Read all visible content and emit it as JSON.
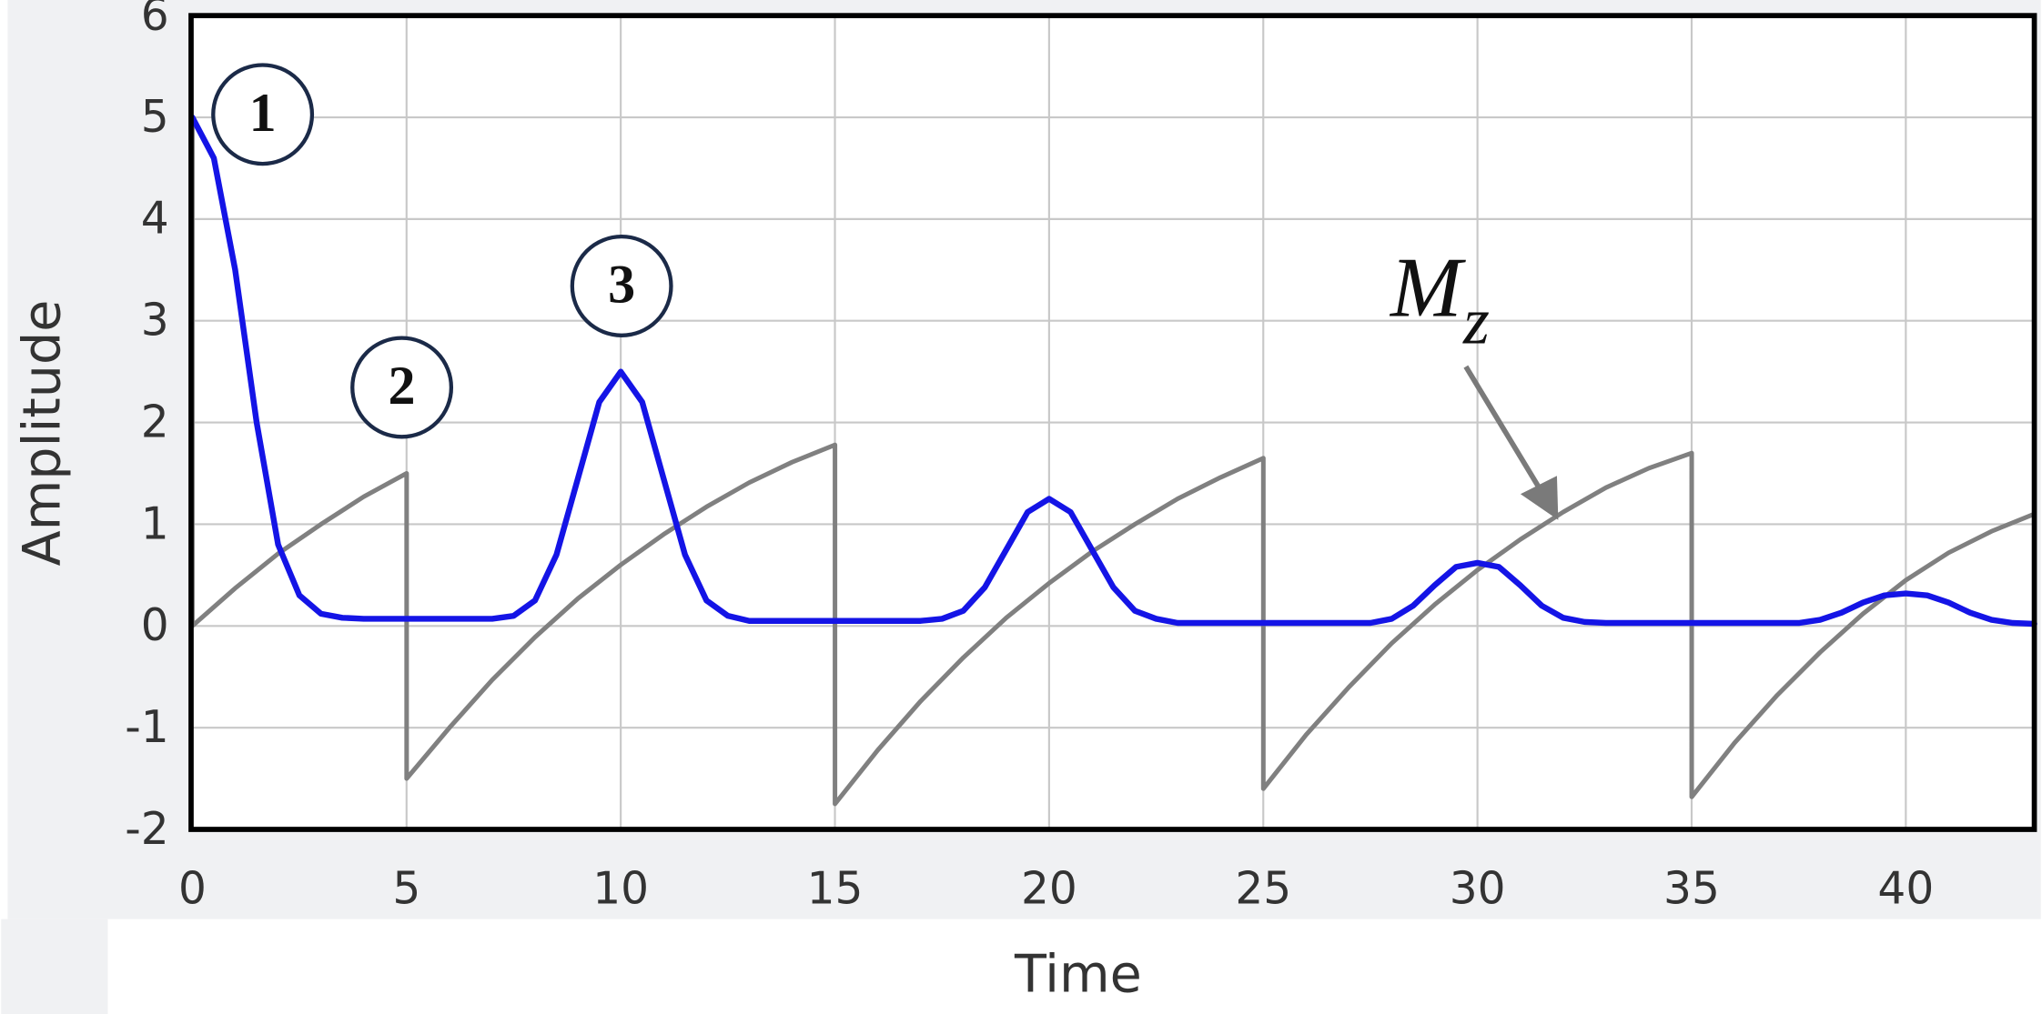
{
  "chart_data": {
    "type": "line",
    "x_label": "Time",
    "y_label": "Amplitude",
    "xlim": [
      0,
      43
    ],
    "ylim": [
      -2,
      6
    ],
    "xticks": [
      0,
      5,
      10,
      15,
      20,
      25,
      30,
      35,
      40
    ],
    "yticks": [
      -2,
      -1,
      0,
      1,
      2,
      3,
      4,
      5,
      6
    ],
    "grid": true,
    "markers": [
      "1",
      "2",
      "3"
    ],
    "mz_label": [
      "M",
      "z"
    ],
    "series": [
      {
        "color": "#808080",
        "x": [
          0,
          0,
          1,
          2,
          3,
          4,
          5,
          5,
          6,
          7,
          8,
          9,
          10,
          11,
          12,
          13,
          14,
          15,
          15,
          16,
          17,
          18,
          19,
          20,
          21,
          22,
          23,
          24,
          25,
          25,
          26,
          27,
          28,
          29,
          30,
          31,
          32,
          33,
          34,
          35,
          35,
          36,
          37,
          38,
          39,
          40,
          41,
          42,
          43
        ],
        "values": [
          5,
          0,
          0.37,
          0.71,
          1.0,
          1.27,
          1.5,
          -1.5,
          -1.0,
          -0.53,
          -0.11,
          0.27,
          0.6,
          0.9,
          1.17,
          1.41,
          1.61,
          1.78,
          -1.75,
          -1.22,
          -0.74,
          -0.31,
          0.08,
          0.42,
          0.73,
          1.0,
          1.25,
          1.46,
          1.65,
          -1.6,
          -1.07,
          -0.6,
          -0.17,
          0.21,
          0.55,
          0.85,
          1.12,
          1.36,
          1.55,
          1.7,
          -1.68,
          -1.15,
          -0.68,
          -0.26,
          0.12,
          0.45,
          0.72,
          0.93,
          1.1
        ]
      },
      {
        "color": "#1414e6",
        "x": [
          0,
          0.5,
          1,
          1.5,
          2,
          2.5,
          3,
          3.5,
          4,
          5,
          6,
          7,
          7.5,
          8,
          8.5,
          9,
          9.5,
          10,
          10.5,
          11,
          11.5,
          12,
          12.5,
          13,
          15,
          17,
          17.5,
          18,
          18.5,
          19,
          19.5,
          20,
          20.5,
          21,
          21.5,
          22,
          22.5,
          23,
          25,
          27.5,
          28,
          28.5,
          29,
          29.5,
          30,
          30.5,
          31,
          31.5,
          32,
          32.5,
          33,
          35,
          37.5,
          38,
          38.5,
          39,
          39.5,
          40,
          40.5,
          41,
          41.5,
          42,
          42.5,
          43
        ],
        "values": [
          5.0,
          4.6,
          3.5,
          2.0,
          0.8,
          0.3,
          0.12,
          0.08,
          0.07,
          0.07,
          0.07,
          0.07,
          0.1,
          0.25,
          0.7,
          1.45,
          2.2,
          2.5,
          2.2,
          1.45,
          0.7,
          0.25,
          0.1,
          0.05,
          0.05,
          0.05,
          0.07,
          0.15,
          0.38,
          0.75,
          1.12,
          1.25,
          1.12,
          0.75,
          0.38,
          0.15,
          0.07,
          0.03,
          0.03,
          0.03,
          0.07,
          0.2,
          0.4,
          0.58,
          0.62,
          0.58,
          0.4,
          0.2,
          0.08,
          0.04,
          0.03,
          0.03,
          0.03,
          0.06,
          0.13,
          0.23,
          0.3,
          0.32,
          0.3,
          0.23,
          0.13,
          0.06,
          0.03,
          0.02
        ]
      }
    ]
  }
}
